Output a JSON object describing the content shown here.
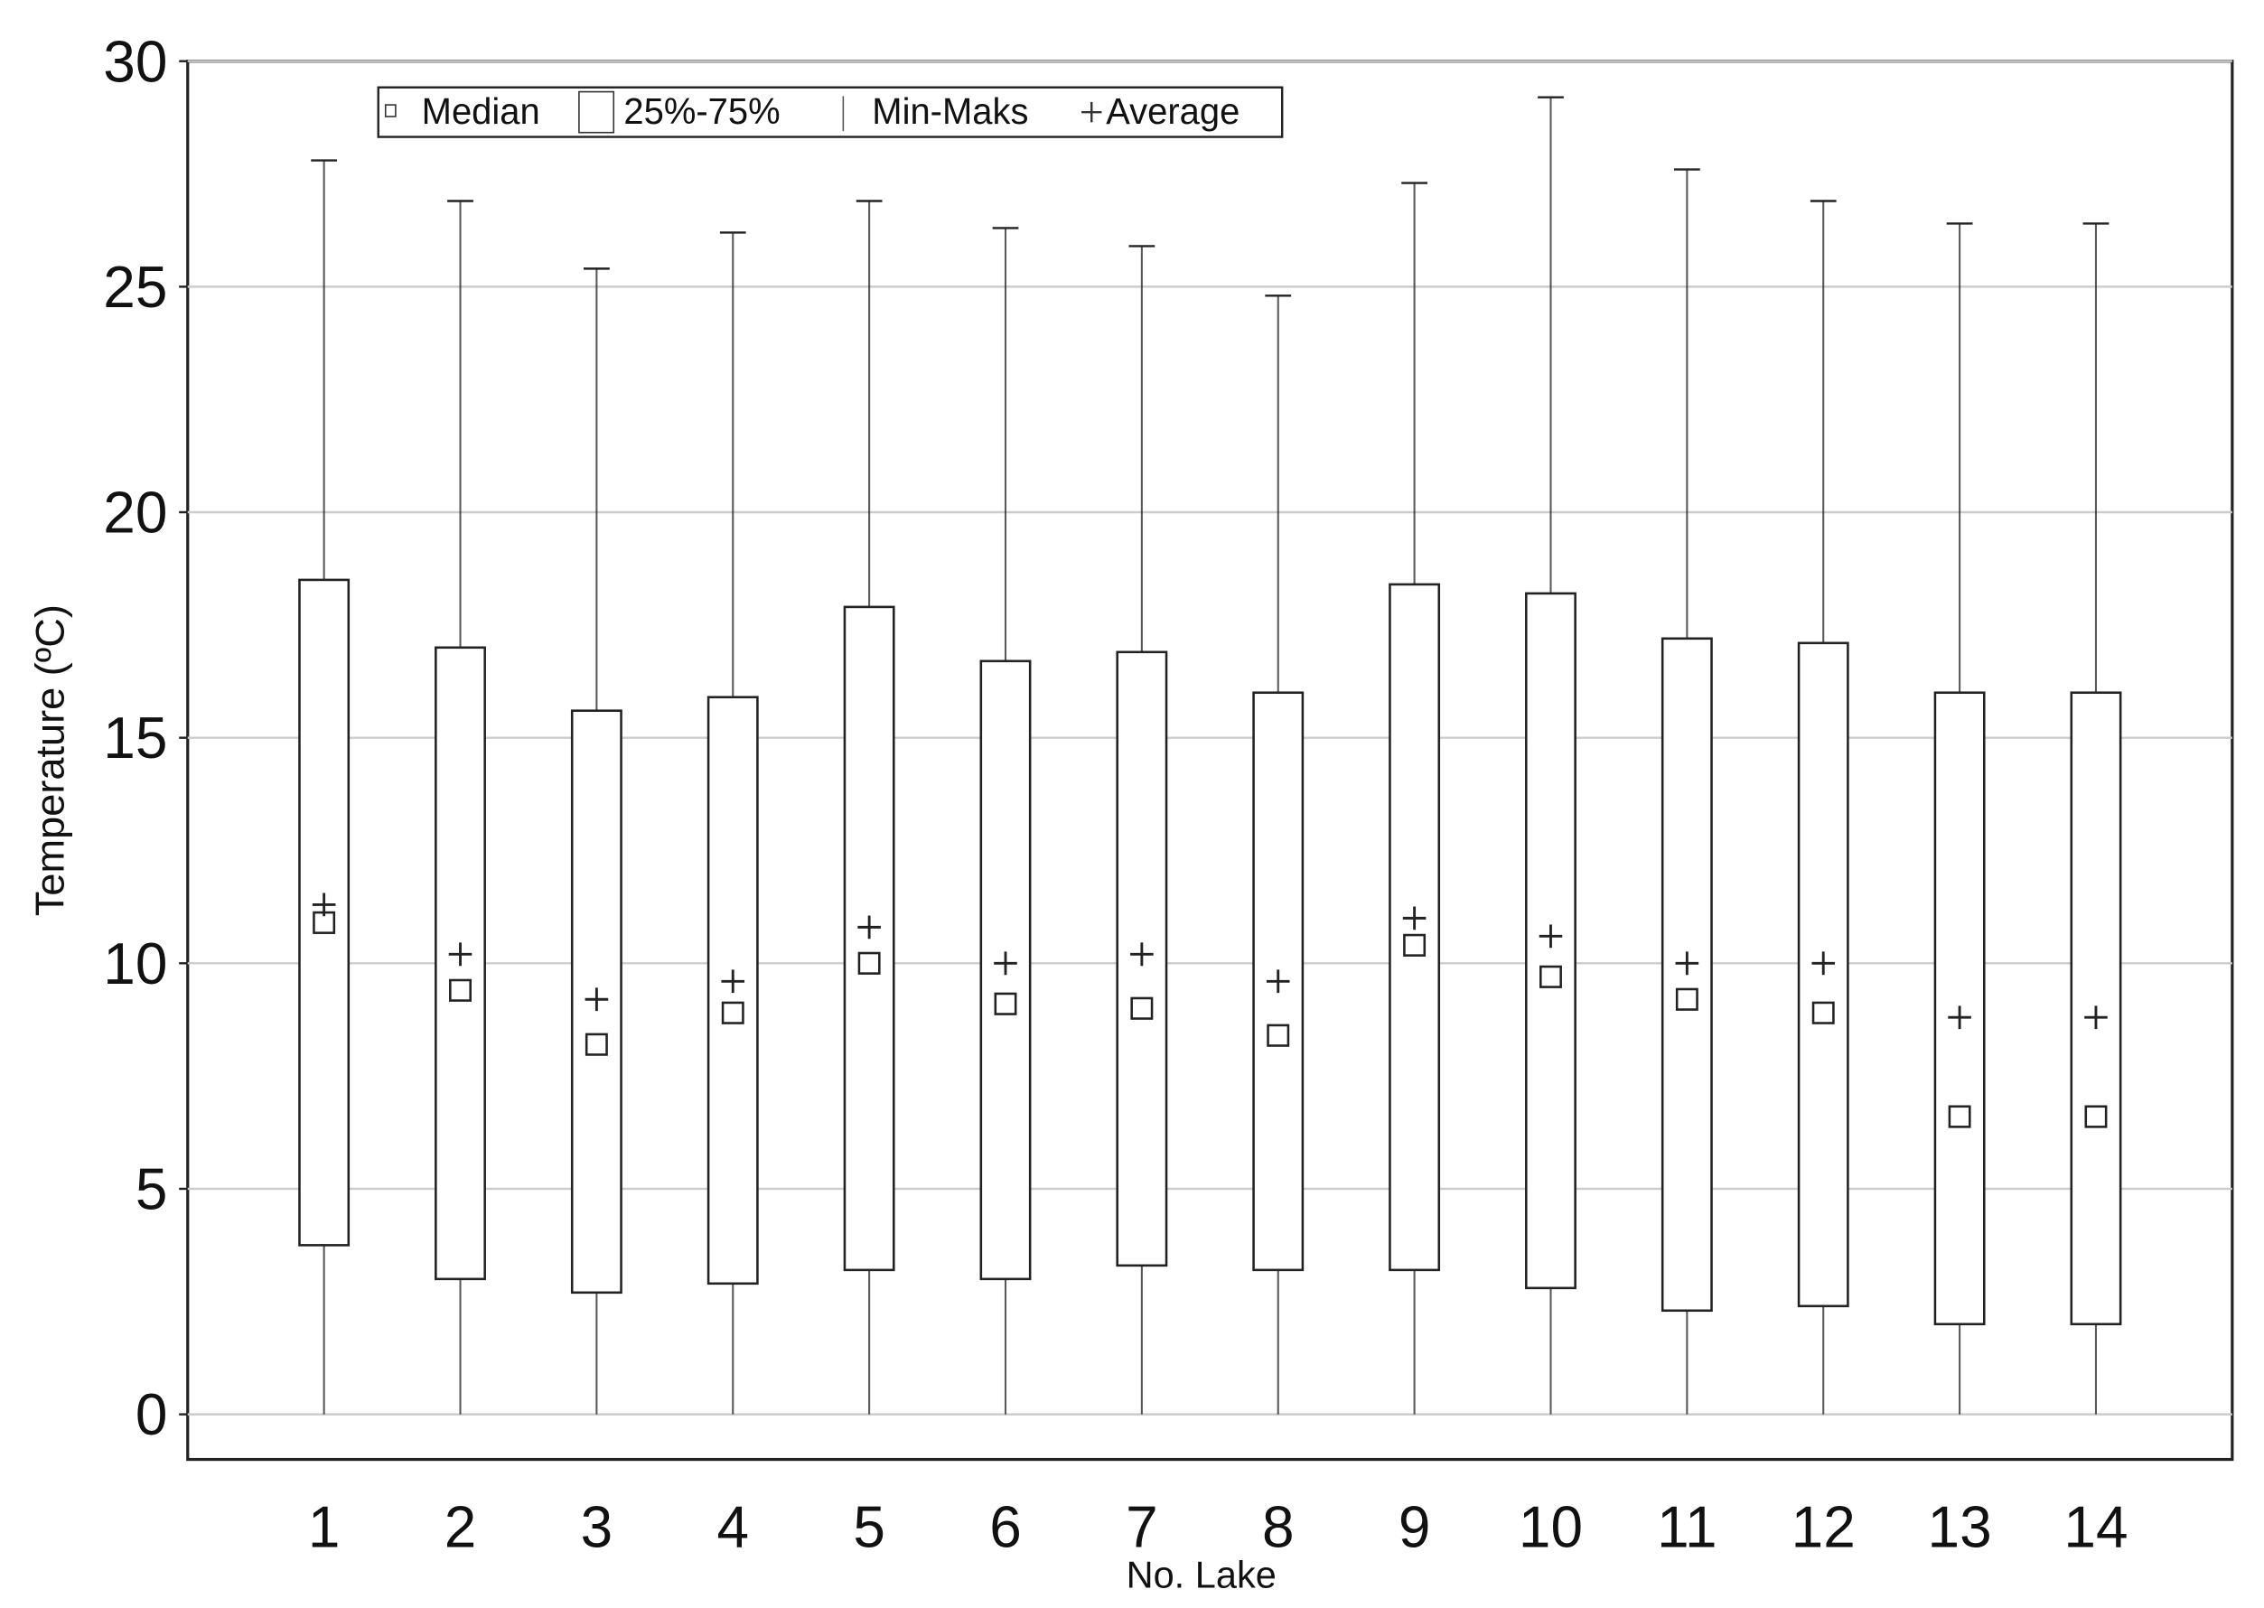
{
  "chart_data": {
    "type": "box",
    "x_label": "No. Lake",
    "y_label": "Temperature (ºC)",
    "categories": [
      "1",
      "2",
      "3",
      "4",
      "5",
      "6",
      "7",
      "8",
      "9",
      "10",
      "11",
      "12",
      "13",
      "14"
    ],
    "min": [
      0,
      0,
      0,
      0,
      0,
      0,
      0,
      0,
      0,
      0,
      0,
      0,
      0,
      0
    ],
    "q1": [
      3.75,
      3.0,
      2.7,
      2.9,
      3.2,
      3.0,
      3.3,
      3.2,
      3.2,
      2.8,
      2.3,
      2.4,
      2.0,
      2.0
    ],
    "median": [
      10.9,
      9.4,
      8.2,
      8.9,
      10.0,
      9.1,
      9.0,
      8.4,
      10.4,
      9.7,
      9.2,
      8.9,
      6.6,
      6.6
    ],
    "q3": [
      18.5,
      17.0,
      15.6,
      15.9,
      17.9,
      16.7,
      16.9,
      16.0,
      18.4,
      18.2,
      17.2,
      17.1,
      16.0,
      16.0
    ],
    "max": [
      27.8,
      26.9,
      25.4,
      26.2,
      26.9,
      26.3,
      25.9,
      24.8,
      27.3,
      29.2,
      27.6,
      26.9,
      26.4,
      26.4
    ],
    "mean": [
      11.3,
      10.2,
      9.2,
      9.6,
      10.8,
      10.0,
      10.2,
      9.6,
      11.0,
      10.6,
      10.0,
      10.0,
      8.8,
      8.8
    ],
    "legend": {
      "median": "Median",
      "box": "25%-75%",
      "whisker": "Min-Maks",
      "mean": "Average"
    },
    "color": "#222222",
    "ylim": [
      -1,
      30
    ],
    "yticks": [
      0,
      5,
      10,
      15,
      20,
      25,
      30
    ],
    "grid": true
  }
}
